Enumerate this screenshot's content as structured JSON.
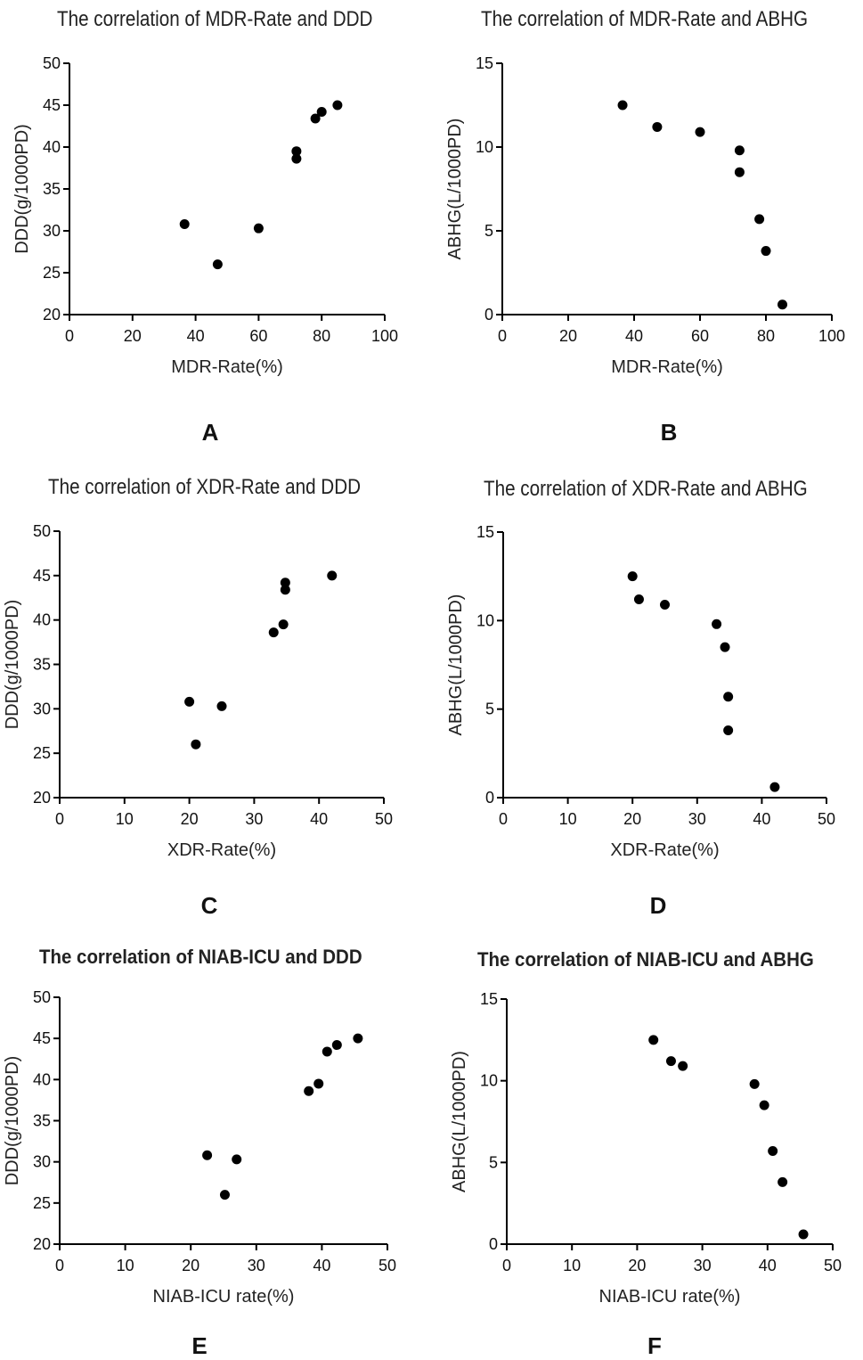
{
  "chart_data": [
    {
      "panel": "A",
      "type": "scatter",
      "title": "The correlation of MDR-Rate and DDD",
      "xlabel": "MDR-Rate(%)",
      "ylabel": "DDD(g/1000PD)",
      "xlim": [
        0,
        100
      ],
      "ylim": [
        20,
        50
      ],
      "xticks": [
        0,
        20,
        40,
        60,
        80,
        100
      ],
      "yticks": [
        20,
        25,
        30,
        35,
        40,
        45,
        50
      ],
      "points": [
        [
          36.5,
          30.8
        ],
        [
          47,
          26.0
        ],
        [
          60,
          30.3
        ],
        [
          72,
          39.5
        ],
        [
          72,
          38.6
        ],
        [
          78,
          43.4
        ],
        [
          80,
          44.2
        ],
        [
          85,
          45.0
        ]
      ]
    },
    {
      "panel": "B",
      "type": "scatter",
      "title": "The correlation of MDR-Rate and ABHG",
      "xlabel": "MDR-Rate(%)",
      "ylabel": "ABHG(L/1000PD)",
      "xlim": [
        0,
        100
      ],
      "ylim": [
        0,
        15
      ],
      "xticks": [
        0,
        20,
        40,
        60,
        80,
        100
      ],
      "yticks": [
        0,
        5,
        10,
        15
      ],
      "points": [
        [
          36.5,
          12.5
        ],
        [
          47,
          11.2
        ],
        [
          60,
          10.9
        ],
        [
          72,
          9.8
        ],
        [
          72,
          8.5
        ],
        [
          78,
          5.7
        ],
        [
          80,
          3.8
        ],
        [
          85,
          0.6
        ]
      ]
    },
    {
      "panel": "C",
      "type": "scatter",
      "title": "The correlation of XDR-Rate and DDD",
      "xlabel": "XDR-Rate(%)",
      "ylabel": "DDD(g/1000PD)",
      "xlim": [
        0,
        50
      ],
      "ylim": [
        20,
        50
      ],
      "xticks": [
        0,
        10,
        20,
        30,
        40,
        50
      ],
      "yticks": [
        20,
        25,
        30,
        35,
        40,
        45,
        50
      ],
      "points": [
        [
          20,
          30.8
        ],
        [
          21,
          26.0
        ],
        [
          25,
          30.3
        ],
        [
          33,
          38.6
        ],
        [
          34.5,
          39.5
        ],
        [
          34.8,
          43.4
        ],
        [
          34.8,
          44.2
        ],
        [
          42,
          45.0
        ]
      ]
    },
    {
      "panel": "D",
      "type": "scatter",
      "title": "The correlation of XDR-Rate and ABHG",
      "xlabel": "XDR-Rate(%)",
      "ylabel": "ABHG(L/1000PD)",
      "xlim": [
        0,
        50
      ],
      "ylim": [
        0,
        15
      ],
      "xticks": [
        0,
        10,
        20,
        30,
        40,
        50
      ],
      "yticks": [
        0,
        5,
        10,
        15
      ],
      "points": [
        [
          20,
          12.5
        ],
        [
          21,
          11.2
        ],
        [
          25,
          10.9
        ],
        [
          33,
          9.8
        ],
        [
          34.3,
          8.5
        ],
        [
          34.8,
          5.7
        ],
        [
          34.8,
          3.8
        ],
        [
          42,
          0.6
        ]
      ]
    },
    {
      "panel": "E",
      "type": "scatter",
      "title": "The correlation of NIAB-ICU and DDD",
      "xlabel": "NIAB-ICU rate(%)",
      "ylabel": "DDD(g/1000PD)",
      "xlim": [
        0,
        50
      ],
      "ylim": [
        20,
        50
      ],
      "xticks": [
        0,
        10,
        20,
        30,
        40,
        50
      ],
      "yticks": [
        20,
        25,
        30,
        35,
        40,
        45,
        50
      ],
      "points": [
        [
          22.5,
          30.8
        ],
        [
          25.2,
          26.0
        ],
        [
          27,
          30.3
        ],
        [
          38,
          38.6
        ],
        [
          39.5,
          39.5
        ],
        [
          40.8,
          43.4
        ],
        [
          42.3,
          44.2
        ],
        [
          45.5,
          45.0
        ]
      ]
    },
    {
      "panel": "F",
      "type": "scatter",
      "title": "The correlation of NIAB-ICU and ABHG",
      "xlabel": "NIAB-ICU rate(%)",
      "ylabel": "ABHG(L/1000PD)",
      "xlim": [
        0,
        50
      ],
      "ylim": [
        0,
        15
      ],
      "xticks": [
        0,
        10,
        20,
        30,
        40,
        50
      ],
      "yticks": [
        0,
        5,
        10,
        15
      ],
      "points": [
        [
          22.5,
          12.5
        ],
        [
          25.2,
          11.2
        ],
        [
          27,
          10.9
        ],
        [
          38,
          9.8
        ],
        [
          39.5,
          8.5
        ],
        [
          40.8,
          5.7
        ],
        [
          42.3,
          3.8
        ],
        [
          45.5,
          0.6
        ]
      ]
    }
  ]
}
